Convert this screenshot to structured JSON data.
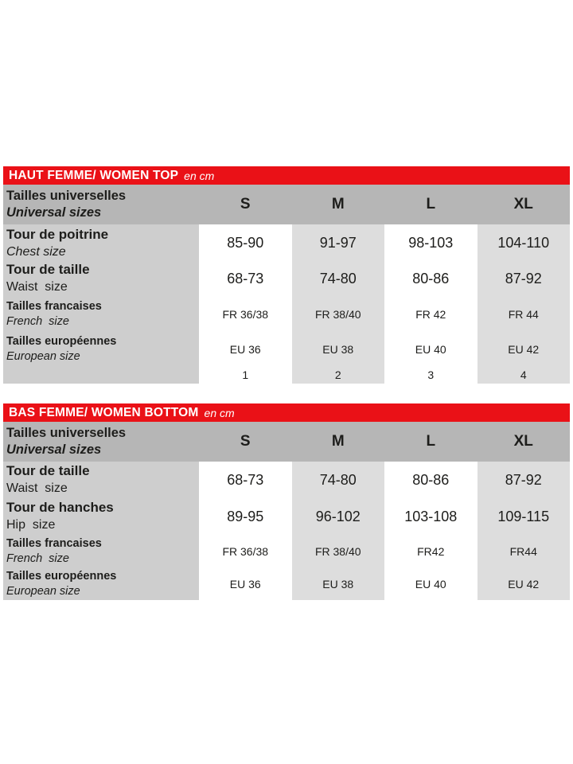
{
  "colors": {
    "page_bg": "#ffffff",
    "banner_bg": "#ea1117",
    "banner_text": "#ffffff",
    "header_bg": "#b6b6b6",
    "label_col_bg": "#cecece",
    "alt_col_bg": "#dddddd",
    "white_col_bg": "#ffffff",
    "text": "#1d1d1b"
  },
  "tables": [
    {
      "id": "women-top",
      "banner": {
        "title": "HAUT FEMME/ WOMEN TOP",
        "unit": "en cm"
      },
      "header": {
        "label_fr": "Tailles universelles",
        "label_en": "Universal sizes",
        "sizes": [
          "S",
          "M",
          "L",
          "XL"
        ]
      },
      "rows": [
        {
          "label_fr": "Tour de poitrine",
          "label_en": "Chest size",
          "en_italic": true,
          "label_size": "large",
          "value_size": "large",
          "h": 47,
          "values": [
            "85-90",
            "91-97",
            "98-103",
            "104-110"
          ]
        },
        {
          "label_fr": "Tour de taille",
          "label_en": "Waist  size",
          "en_italic": false,
          "label_size": "large",
          "value_size": "large",
          "h": 42,
          "values": [
            "68-73",
            "74-80",
            "80-86",
            "87-92"
          ]
        },
        {
          "label_fr": "Tailles francaises",
          "label_en": "French  size",
          "en_italic": true,
          "label_size": "small",
          "value_size": "small",
          "h": 47,
          "values": [
            "FR 36/38",
            "FR 38/40",
            "FR 42",
            "FR 44"
          ]
        },
        {
          "label_fr": "Tailles européennes",
          "label_en": "European size",
          "en_italic": true,
          "label_size": "small",
          "value_size": "small",
          "h": 41,
          "values": [
            "EU 36",
            "EU 38",
            "EU 40",
            "EU 42"
          ]
        },
        {
          "label_fr": "",
          "label_en": "",
          "en_italic": false,
          "label_size": "small",
          "value_size": "small",
          "h": 23,
          "values": [
            "1",
            "2",
            "3",
            "4"
          ]
        }
      ]
    },
    {
      "id": "women-bottom",
      "banner": {
        "title": "BAS FEMME/ WOMEN BOTTOM",
        "unit": "en cm"
      },
      "header": {
        "label_fr": "Tailles universelles",
        "label_en": "Universal sizes",
        "sizes": [
          "S",
          "M",
          "L",
          "XL"
        ]
      },
      "rows": [
        {
          "label_fr": "Tour de taille",
          "label_en": "Waist  size",
          "en_italic": false,
          "label_size": "large",
          "value_size": "large",
          "h": 46,
          "values": [
            "68-73",
            "74-80",
            "80-86",
            "87-92"
          ]
        },
        {
          "label_fr": "Tour de hanches",
          "label_en": "Hip  size",
          "en_italic": false,
          "label_size": "large",
          "value_size": "large",
          "h": 46,
          "values": [
            "89-95",
            "96-102",
            "103-108",
            "109-115"
          ]
        },
        {
          "label_fr": "Tailles francaises",
          "label_en": "French  size",
          "en_italic": true,
          "label_size": "small",
          "value_size": "small",
          "h": 42,
          "values": [
            "FR 36/38",
            "FR 38/40",
            "FR42",
            "FR44"
          ]
        },
        {
          "label_fr": "Tailles européennes",
          "label_en": "European size",
          "en_italic": true,
          "label_size": "small",
          "value_size": "small",
          "h": 40,
          "values": [
            "EU 36",
            "EU 38",
            "EU 40",
            "EU 42"
          ]
        }
      ]
    }
  ]
}
